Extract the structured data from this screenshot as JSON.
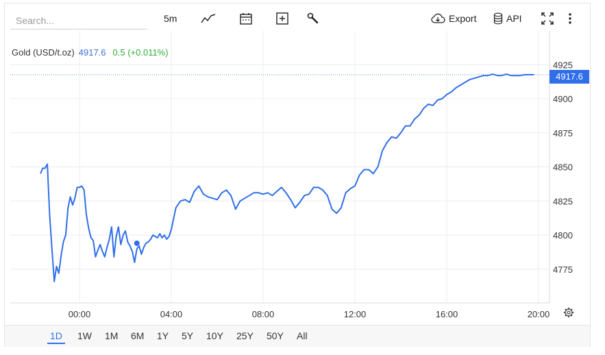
{
  "toolbar": {
    "search_placeholder": "Search...",
    "interval": "5m",
    "export_label": "Export",
    "api_label": "API"
  },
  "legend": {
    "name": "Gold (USD/t.oz)",
    "value": "4917.6",
    "change": "0.5 (+0.011%)"
  },
  "price_tag": "4917.6",
  "colors": {
    "line": "#2f6ee8",
    "up": "#2fab3a",
    "accent": "#2f6ee8"
  },
  "icons": [
    "line-chart-icon",
    "calendar-icon",
    "add-icon",
    "wrench-icon",
    "cloud-download-icon",
    "database-icon",
    "fullscreen-icon",
    "more-vertical-icon",
    "gear-icon"
  ],
  "ranges": [
    "1D",
    "1W",
    "1M",
    "6M",
    "1Y",
    "5Y",
    "10Y",
    "25Y",
    "50Y",
    "All"
  ],
  "active_range": "1D",
  "chart_data": {
    "type": "line",
    "x_ticks": [
      "00:00",
      "04:00",
      "08:00",
      "12:00",
      "16:00",
      "20:00"
    ],
    "y_ticks": [
      "4775",
      "4800",
      "4825",
      "4850",
      "4875",
      "4900",
      "4925"
    ],
    "ylim": [
      4750,
      4925
    ],
    "last_value": 4917.6,
    "grid": true,
    "series": [
      {
        "x": [
          -1.7,
          -1.6,
          -1.5,
          -1.4,
          -1.3,
          -1.2,
          -1.1,
          -1.0,
          -0.9,
          -0.8,
          -0.7,
          -0.6,
          -0.5,
          -0.4,
          -0.3,
          -0.2,
          -0.1,
          0.0,
          0.1,
          0.2,
          0.3,
          0.4,
          0.5,
          0.6,
          0.7,
          0.8,
          0.9,
          1.0,
          1.1,
          1.2,
          1.3,
          1.4,
          1.5,
          1.6,
          1.7,
          1.8,
          1.9,
          2.0,
          2.1,
          2.2,
          2.3,
          2.4,
          2.5,
          2.6,
          2.7,
          2.8,
          2.9,
          3.0,
          3.1,
          3.2,
          3.3,
          3.4,
          3.5,
          3.6,
          3.7,
          3.8,
          3.9,
          4.0,
          4.2,
          4.4,
          4.6,
          4.8,
          5.0,
          5.2,
          5.4,
          5.6,
          5.8,
          6.0,
          6.2,
          6.4,
          6.6,
          6.8,
          7.0,
          7.2,
          7.4,
          7.6,
          7.8,
          8.0,
          8.2,
          8.4,
          8.6,
          8.8,
          9.0,
          9.2,
          9.4,
          9.6,
          9.8,
          10.0,
          10.2,
          10.4,
          10.6,
          10.8,
          11.0,
          11.2,
          11.4,
          11.6,
          11.8,
          12.0,
          12.2,
          12.4,
          12.6,
          12.8,
          13.0,
          13.2,
          13.4,
          13.6,
          13.8,
          14.0,
          14.2,
          14.4,
          14.6,
          14.8,
          15.0,
          15.2,
          15.4,
          15.6,
          15.8,
          16.0,
          16.2,
          16.4,
          16.6,
          16.8,
          17.0,
          17.2,
          17.4,
          17.6,
          17.8,
          18.0,
          18.2,
          18.4,
          18.6,
          18.8,
          19.0,
          19.2,
          19.4,
          19.6,
          19.8
        ],
        "values": [
          4845,
          4849,
          4849,
          4852,
          4815,
          4790,
          4766,
          4777,
          4772,
          4785,
          4795,
          4800,
          4820,
          4828,
          4822,
          4827,
          4835,
          4835,
          4836,
          4833,
          4815,
          4805,
          4798,
          4796,
          4784,
          4789,
          4793,
          4788,
          4784,
          4791,
          4797,
          4806,
          4784,
          4799,
          4806,
          4793,
          4800,
          4803,
          4795,
          4792,
          4788,
          4780,
          4790,
          4792,
          4786,
          4791,
          4794,
          4795,
          4797,
          4800,
          4799,
          4798,
          4801,
          4798,
          4800,
          4797,
          4799,
          4804,
          4820,
          4825,
          4826,
          4824,
          4832,
          4836,
          4830,
          4828,
          4827,
          4826,
          4831,
          4833,
          4829,
          4819,
          4825,
          4827,
          4829,
          4831,
          4831,
          4830,
          4831,
          4829,
          4832,
          4835,
          4831,
          4826,
          4820,
          4824,
          4829,
          4830,
          4835,
          4835,
          4833,
          4829,
          4819,
          4816,
          4820,
          4831,
          4834,
          4836,
          4844,
          4848,
          4848,
          4845,
          4850,
          4862,
          4868,
          4872,
          4871,
          4875,
          4880,
          4880,
          4885,
          4888,
          4893,
          4896,
          4895,
          4899,
          4900,
          4903,
          4905,
          4908,
          4910,
          4912,
          4914,
          4915,
          4916,
          4917,
          4917,
          4918,
          4917,
          4917,
          4918,
          4917,
          4917,
          4917,
          4917.6,
          4917.6,
          4917.6
        ]
      }
    ]
  }
}
